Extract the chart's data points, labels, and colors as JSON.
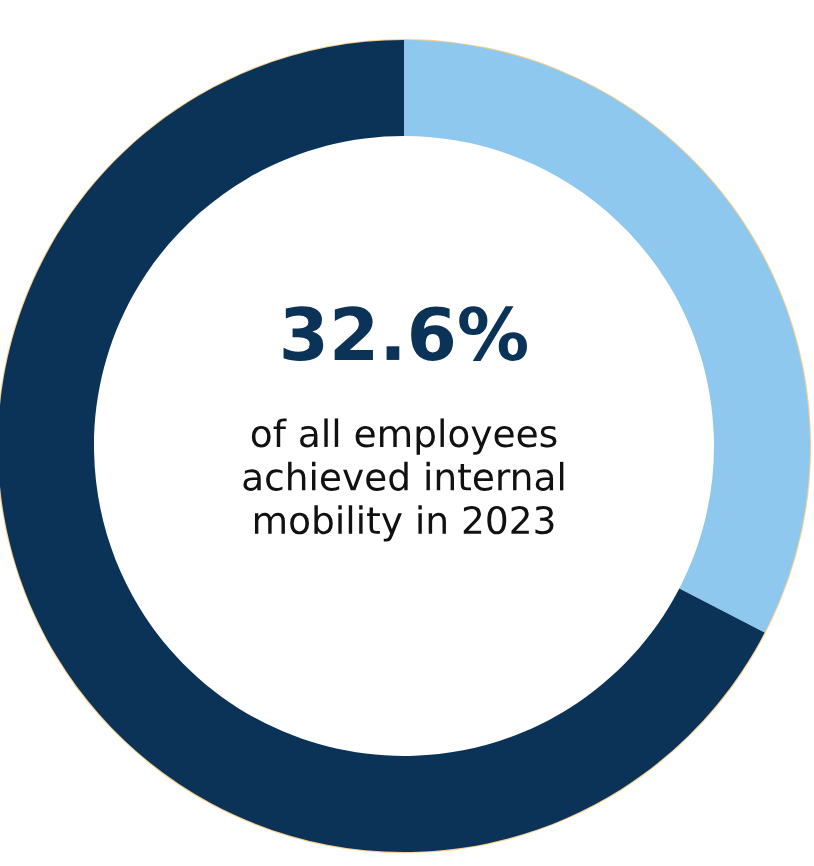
{
  "chart_data": {
    "type": "donut",
    "categories": [
      null,
      null
    ],
    "values": [
      32.6,
      67.4
    ],
    "colors": [
      "#8ec8ee",
      "#0b3357"
    ],
    "annotations": [
      "32.6%",
      "of all employees\nachieved internal\nmobility in 2023"
    ]
  }
}
